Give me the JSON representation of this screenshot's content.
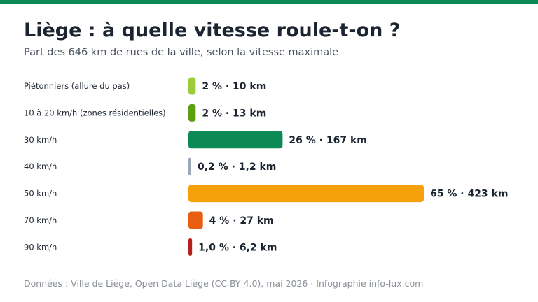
{
  "header": {
    "title": "Liège : à quelle vitesse roule-t-on ?",
    "subtitle": "Part des 646 km de rues de la ville, selon la vitesse maximale"
  },
  "chart_data": {
    "type": "bar",
    "orientation": "horizontal",
    "categories": [
      "Piétonniers (allure du pas)",
      "10 à 20 km/h (zones résidentielles)",
      "30 km/h",
      "40 km/h",
      "50 km/h",
      "70 km/h",
      "90 km/h"
    ],
    "values": [
      2,
      2,
      26,
      0.2,
      65,
      4,
      1.0
    ],
    "km": [
      10,
      13,
      167,
      1.2,
      423,
      27,
      6.2
    ],
    "labels": [
      "2 %  ·  10 km",
      "2 %  ·  13 km",
      "26 %  ·  167 km",
      "0,2 %  ·  1,2 km",
      "65 %  ·  423 km",
      "4 %  ·  27 km",
      "1,0 %  ·  6,2 km"
    ],
    "colors": [
      "#9ccc3c",
      "#5e9e12",
      "#0b8a55",
      "#9aa8ba",
      "#f5a10c",
      "#e95f12",
      "#b3201f"
    ],
    "xlim": [
      0,
      65
    ]
  },
  "footer": {
    "source": "Données : Ville de Liège, Open Data Liège (CC BY 4.0), mai 2026 · Infographie info-lux.com"
  }
}
